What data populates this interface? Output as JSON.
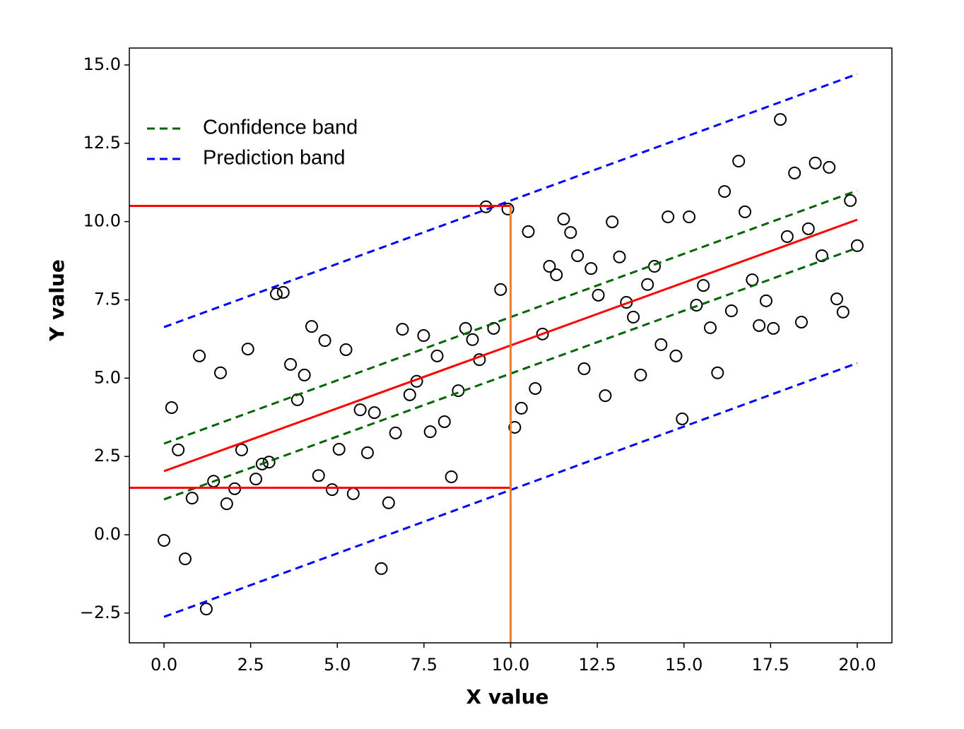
{
  "chart_data": {
    "type": "scatter",
    "xlabel": "X value",
    "ylabel": "Y value",
    "xlim": [
      -1,
      21
    ],
    "ylim": [
      -3.45,
      15.54
    ],
    "xticks": [
      {
        "value": 0,
        "label": "0.0"
      },
      2.5,
      {
        "value": 5,
        "label": "5.0"
      },
      7.5,
      {
        "value": 10,
        "label": "10.0"
      },
      12.5,
      {
        "value": 15,
        "label": "15.0"
      },
      17.5,
      {
        "value": 20,
        "label": "20.0"
      }
    ],
    "yticks": [
      {
        "value": -2.5,
        "label": "−2.5"
      },
      {
        "value": 0,
        "label": "0.0"
      },
      2.5,
      {
        "value": 5,
        "label": "5.0"
      },
      7.5,
      {
        "value": 10,
        "label": "10.0"
      },
      12.5,
      {
        "value": 15,
        "label": "15.0"
      }
    ],
    "legend": "upper left",
    "points": {
      "color": "#000000",
      "x": [
        0,
        0.22,
        0.41,
        0.61,
        0.81,
        1.02,
        1.22,
        1.43,
        1.63,
        1.81,
        2.04,
        2.24,
        2.42,
        2.65,
        2.83,
        3.03,
        3.24,
        3.44,
        3.65,
        3.85,
        4.05,
        4.26,
        4.46,
        4.64,
        4.85,
        5.05,
        5.25,
        5.46,
        5.66,
        5.87,
        6.07,
        6.27,
        6.48,
        6.68,
        6.88,
        7.09,
        7.29,
        7.49,
        7.68,
        7.88,
        8.09,
        8.29,
        8.49,
        8.7,
        8.9,
        9.1,
        9.29,
        9.51,
        9.71,
        9.92,
        10.12,
        10.31,
        10.51,
        10.71,
        10.92,
        11.12,
        11.32,
        11.53,
        11.73,
        11.93,
        12.12,
        12.32,
        12.53,
        12.73,
        12.93,
        13.14,
        13.34,
        13.54,
        13.75,
        13.95,
        14.15,
        14.34,
        14.54,
        14.77,
        14.95,
        15.15,
        15.36,
        15.56,
        15.76,
        15.97,
        16.17,
        16.37,
        16.58,
        16.76,
        16.97,
        17.17,
        17.37,
        17.58,
        17.78,
        17.98,
        18.19,
        18.39,
        18.59,
        18.79,
        18.98,
        19.19,
        19.41,
        19.59,
        19.8,
        20
      ],
      "values": [
        -0.18,
        4.06,
        2.71,
        -0.77,
        1.17,
        5.71,
        -2.37,
        1.71,
        5.17,
        0.99,
        1.47,
        2.71,
        5.93,
        1.78,
        2.26,
        2.32,
        7.69,
        7.74,
        5.44,
        4.31,
        5.1,
        6.65,
        1.89,
        6.2,
        1.44,
        2.73,
        5.91,
        1.31,
        3.99,
        2.62,
        3.9,
        -1.08,
        1.02,
        3.25,
        6.56,
        4.47,
        4.9,
        6.36,
        3.29,
        5.71,
        3.61,
        1.85,
        4.6,
        6.59,
        6.23,
        5.59,
        10.47,
        6.59,
        7.83,
        10.4,
        3.43,
        4.04,
        9.68,
        4.67,
        6.41,
        8.57,
        8.3,
        10.08,
        9.65,
        8.91,
        5.3,
        8.5,
        7.65,
        4.44,
        9.99,
        8.87,
        7.42,
        6.95,
        5.1,
        7.99,
        8.57,
        6.07,
        10.15,
        5.71,
        3.7,
        10.15,
        7.33,
        7.96,
        6.61,
        5.17,
        10.96,
        7.15,
        11.93,
        10.31,
        8.14,
        6.68,
        7.47,
        6.59,
        13.26,
        9.52,
        11.55,
        6.79,
        9.77,
        11.87,
        8.91,
        11.73,
        7.53,
        7.11,
        10.67,
        9.23
      ]
    },
    "series": [
      {
        "name": "Confidence band",
        "color": "#006400",
        "style": "dashed",
        "x": [
          0,
          20
        ],
        "values": [
          2.91,
          10.99
        ]
      },
      {
        "color": "#006400",
        "style": "dashed",
        "x": [
          0,
          20
        ],
        "values": [
          1.13,
          9.16
        ]
      },
      {
        "name": "Prediction band",
        "color": "#0000ff",
        "style": "dashed",
        "x": [
          0,
          20
        ],
        "values": [
          6.63,
          14.71
        ]
      },
      {
        "color": "#0000ff",
        "style": "dashed",
        "x": [
          0,
          20
        ],
        "values": [
          -2.62,
          5.48
        ]
      },
      {
        "color": "#ff0000",
        "style": "solid",
        "x": [
          0,
          20
        ],
        "values": [
          2.03,
          10.06
        ]
      },
      {
        "color": "#ff0000",
        "style": "solid",
        "x": [
          -1,
          10
        ],
        "values": [
          10.5,
          10.5
        ]
      },
      {
        "color": "#ff0000",
        "style": "solid",
        "x": [
          -1,
          10
        ],
        "values": [
          1.5,
          1.5
        ]
      },
      {
        "color": "#f08030",
        "style": "solid",
        "x": [
          10,
          10
        ],
        "values": [
          -3.45,
          10.5
        ]
      }
    ]
  }
}
